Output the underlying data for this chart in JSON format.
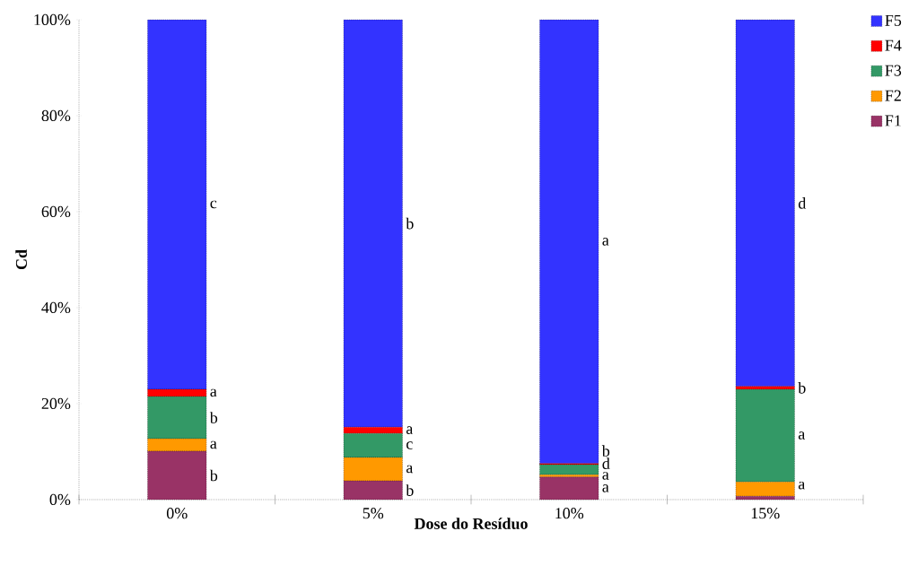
{
  "chart_data": {
    "type": "bar",
    "stacked": true,
    "xlabel": "Dose do Resíduo",
    "ylabel": "Cd",
    "categories": [
      "0%",
      "5%",
      "10%",
      "15%"
    ],
    "series": [
      {
        "name": "F1",
        "color": "#993366",
        "values": [
          10.1,
          3.9,
          4.7,
          0.7
        ]
      },
      {
        "name": "F2",
        "color": "#ff9900",
        "values": [
          2.6,
          4.9,
          0.5,
          3.0
        ]
      },
      {
        "name": "F3",
        "color": "#339966",
        "values": [
          8.8,
          5.0,
          2.1,
          19.3
        ]
      },
      {
        "name": "F4",
        "color": "#ff0000",
        "values": [
          1.5,
          1.3,
          0.2,
          0.6
        ]
      },
      {
        "name": "F5",
        "color": "#3333ff",
        "values": [
          77.0,
          84.9,
          92.5,
          76.4
        ]
      }
    ],
    "ylim": [
      0,
      100
    ],
    "yticks": [
      {
        "value": 0,
        "label": "0%"
      },
      {
        "value": 20,
        "label": "20%"
      },
      {
        "value": 40,
        "label": "40%"
      },
      {
        "value": 60,
        "label": "60%"
      },
      {
        "value": 80,
        "label": "80%"
      },
      {
        "value": 100,
        "label": "100%"
      }
    ],
    "legend": "right",
    "annotations": [
      "c",
      "a",
      "b",
      "a",
      "b",
      "b",
      "a",
      "c",
      "a",
      "b",
      "a",
      "b",
      "d",
      "a",
      "a",
      "d",
      "b",
      "a",
      "a"
    ]
  }
}
